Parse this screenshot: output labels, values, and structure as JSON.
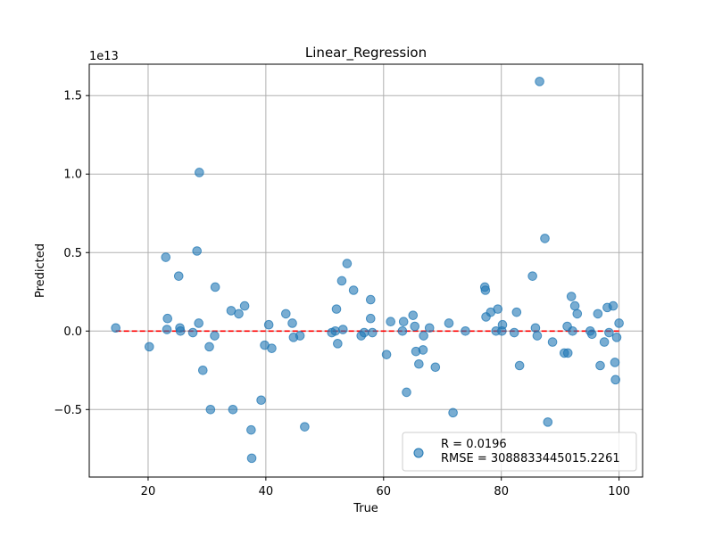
{
  "chart_data": {
    "type": "scatter",
    "title": "Linear_Regression",
    "xlabel": "True",
    "ylabel": "Predicted",
    "y_offset_label": "1e13",
    "xlim": [
      10,
      104
    ],
    "ylim": [
      -0.93,
      1.7
    ],
    "xticks": [
      20,
      40,
      60,
      80,
      100
    ],
    "yticks": [
      -0.5,
      0.0,
      0.5,
      1.0,
      1.5
    ],
    "xtick_labels": [
      "20",
      "40",
      "60",
      "80",
      "100"
    ],
    "ytick_labels": [
      "−0.5",
      "0.0",
      "0.5",
      "1.0",
      "1.5"
    ],
    "grid": true,
    "legend": {
      "location": "lower right",
      "entries": [
        "R = 0.0196",
        "RMSE = 3088833445015.2261"
      ]
    },
    "colors": {
      "points": "#1f77b4",
      "fit_line": "#ff0000",
      "grid": "#b0b0b0"
    },
    "fit_line": {
      "x": [
        14.5,
        100
      ],
      "y": [
        0,
        0
      ],
      "style": "dashed"
    },
    "series": [
      {
        "x": [
          14.5,
          20.2,
          23.0,
          23.2,
          23.3,
          25.2,
          25.5,
          25.4,
          27.6,
          28.3,
          28.6,
          28.7,
          29.3,
          30.4,
          30.6,
          31.3,
          31.4,
          34.1,
          34.4,
          35.4,
          36.4,
          37.5,
          37.6,
          39.2,
          39.8,
          40.5,
          41.0,
          43.4,
          44.5,
          44.7,
          45.8,
          46.6,
          51.2,
          51.8,
          52.0,
          52.2,
          52.9,
          53.1,
          53.8,
          54.9,
          56.2,
          56.7,
          57.8,
          57.8,
          58.1,
          60.5,
          61.2,
          63.2,
          63.4,
          63.9,
          65.0,
          65.3,
          65.5,
          66.0,
          66.7,
          66.8,
          67.8,
          68.8,
          71.1,
          71.8,
          73.9,
          77.2,
          77.3,
          77.4,
          78.2,
          79.1,
          79.4,
          80.1,
          80.2,
          82.2,
          82.6,
          83.1,
          85.3,
          85.8,
          86.1,
          86.5,
          87.4,
          87.9,
          88.7,
          90.7,
          91.2,
          91.3,
          91.9,
          92.1,
          92.5,
          92.9,
          95.1,
          95.4,
          96.4,
          96.8,
          97.5,
          98.0,
          98.3,
          99.0,
          99.3,
          99.4,
          99.6,
          100.0
        ],
        "y": [
          0.02,
          -0.1,
          0.47,
          0.01,
          0.08,
          0.35,
          0.0,
          0.02,
          -0.01,
          0.51,
          0.05,
          1.01,
          -0.25,
          -0.1,
          -0.5,
          -0.03,
          0.28,
          0.13,
          -0.5,
          0.11,
          0.16,
          -0.63,
          -0.81,
          -0.44,
          -0.09,
          0.04,
          -0.11,
          0.11,
          0.05,
          -0.04,
          -0.03,
          -0.61,
          -0.01,
          0.0,
          0.14,
          -0.08,
          0.32,
          0.01,
          0.43,
          0.26,
          -0.03,
          -0.01,
          0.2,
          0.08,
          -0.01,
          -0.15,
          0.06,
          0.0,
          0.06,
          -0.39,
          0.1,
          0.03,
          -0.13,
          -0.21,
          -0.12,
          -0.03,
          0.02,
          -0.23,
          0.05,
          -0.52,
          0.0,
          0.28,
          0.26,
          0.09,
          0.12,
          0.0,
          0.14,
          0.0,
          0.04,
          -0.01,
          0.12,
          -0.22,
          0.35,
          0.02,
          -0.03,
          1.59,
          0.59,
          -0.58,
          -0.07,
          -0.14,
          0.03,
          -0.14,
          0.22,
          0.0,
          0.16,
          0.11,
          0.0,
          -0.02,
          0.11,
          -0.22,
          -0.07,
          0.15,
          -0.01,
          0.16,
          -0.2,
          -0.31,
          -0.04,
          0.05
        ]
      }
    ]
  }
}
